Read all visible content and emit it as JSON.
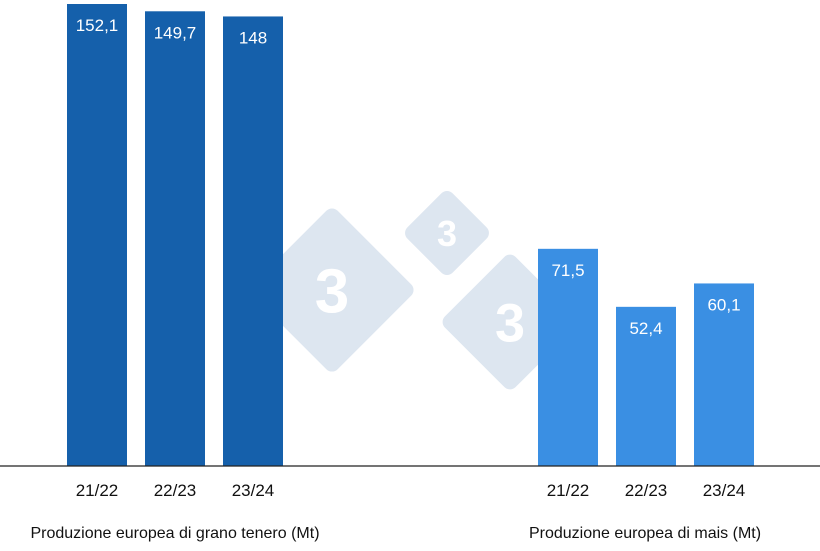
{
  "chart_data": {
    "type": "bar",
    "groups": [
      {
        "title": "Produzione europea di grano tenero (Mt)",
        "categories": [
          "21/22",
          "22/23",
          "23/24"
        ],
        "values": [
          152.1,
          149.7,
          148
        ],
        "value_labels": [
          "152,1",
          "149,7",
          "148"
        ],
        "color": "#1560ab"
      },
      {
        "title": "Produzione europea di mais (Mt)",
        "categories": [
          "21/22",
          "22/23",
          "23/24"
        ],
        "values": [
          71.5,
          52.4,
          60.1
        ],
        "value_labels": [
          "71,5",
          "52,4",
          "60,1"
        ],
        "color": "#3a8fe3"
      }
    ],
    "ylim": [
      0,
      152.1
    ],
    "grid": false,
    "axis_color": "#222222"
  },
  "watermark": {
    "text": "3",
    "color": "#dde6f0",
    "icon": "333-logo-icon"
  }
}
